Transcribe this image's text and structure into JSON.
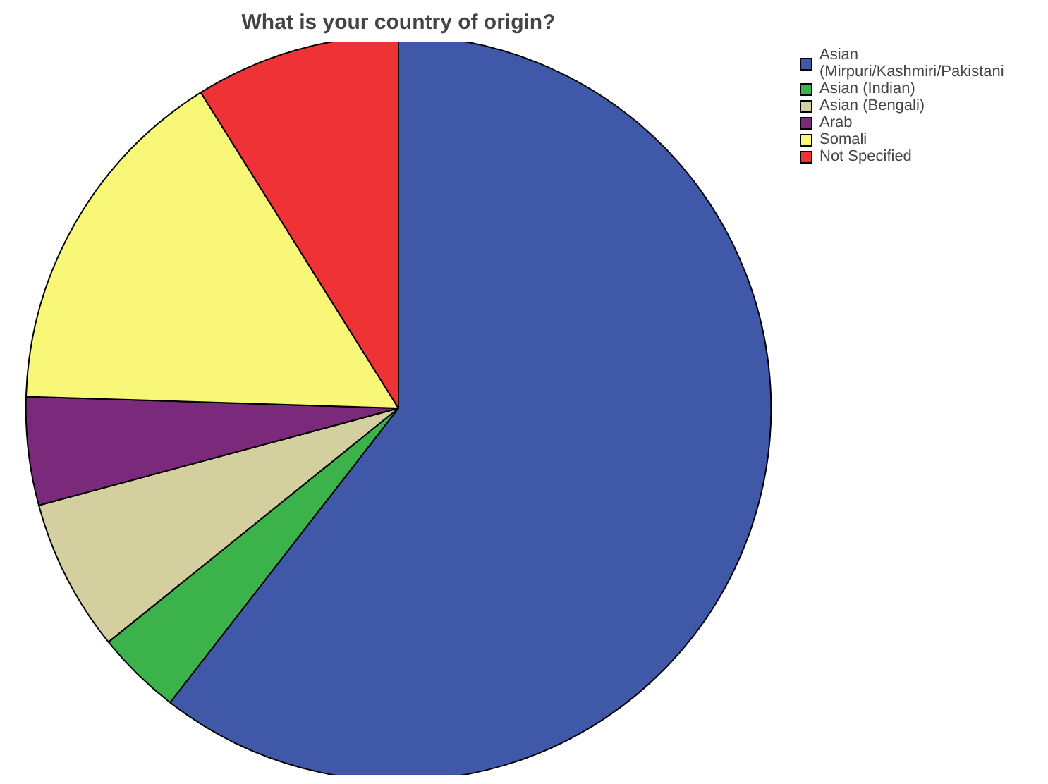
{
  "chart_data": {
    "type": "pie",
    "title": "What is your country of origin?",
    "categories": [
      "Asian\n(Mirpuri/Kashmiri/Pakistani",
      "Asian (Indian)",
      "Asian (Bengali)",
      "Arab",
      "Somali",
      "Not Specified"
    ],
    "values": [
      60.5,
      3.7,
      6.6,
      4.7,
      15.6,
      8.9
    ],
    "colors": [
      "#3f59a8",
      "#3cb34a",
      "#d3cf9f",
      "#7b2a7b",
      "#f8f778",
      "#ef3236"
    ],
    "legend": "top right"
  }
}
